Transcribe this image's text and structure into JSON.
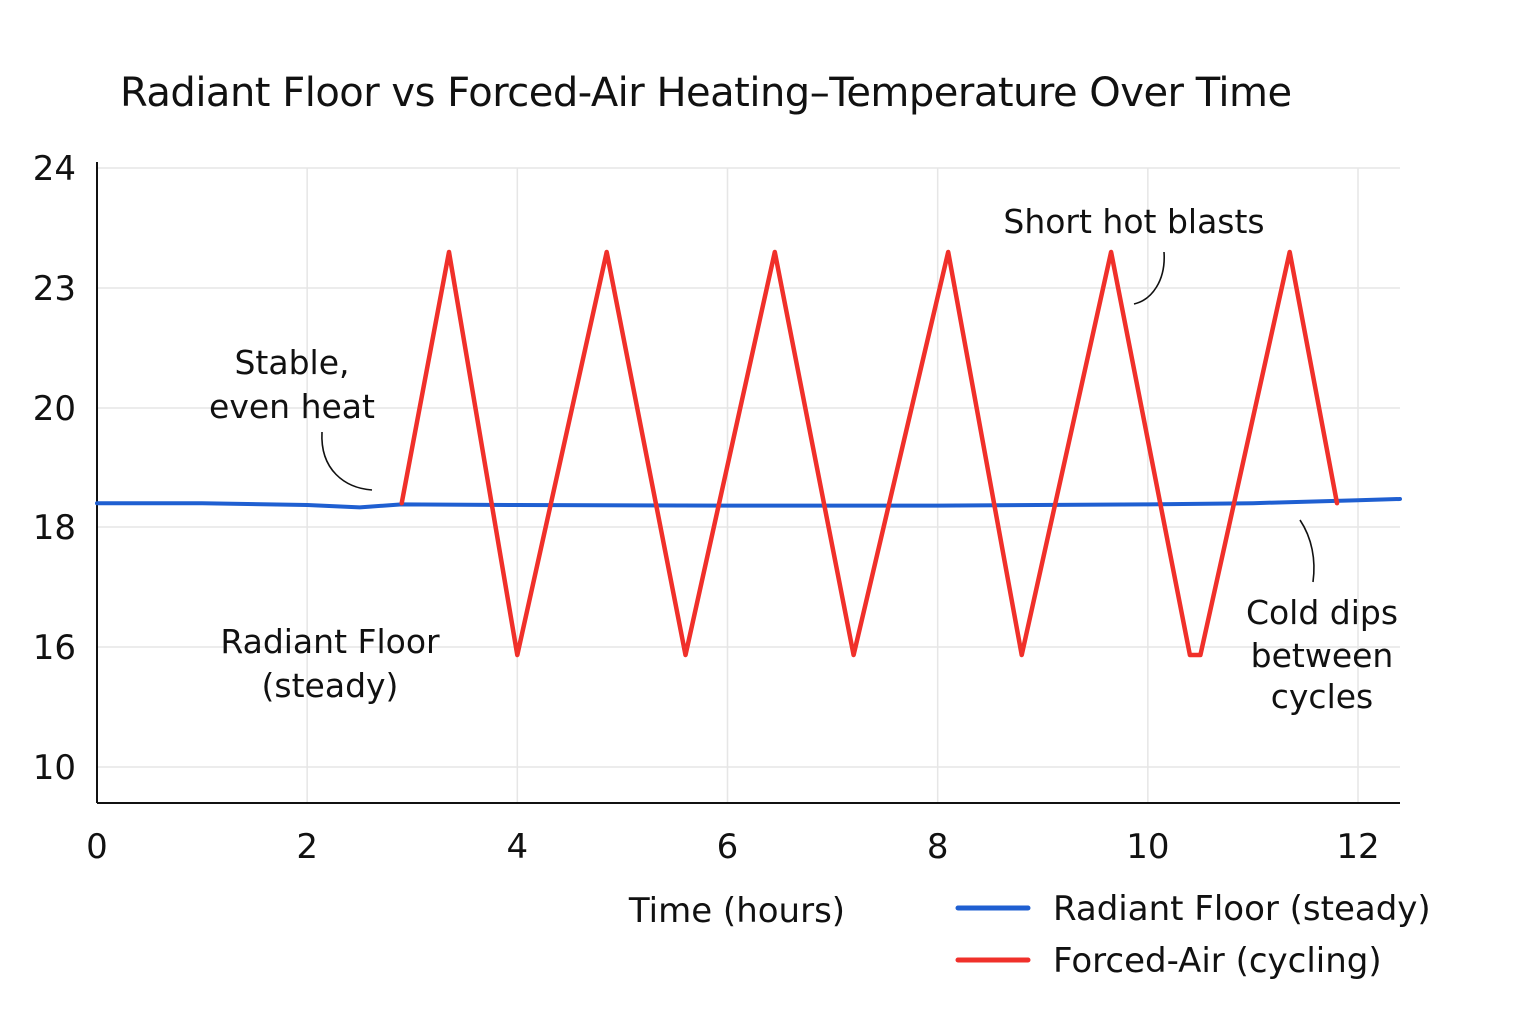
{
  "chart_data": {
    "type": "line",
    "title": "Radiant Floor vs Forced-Air Heating–Temperature Over Time",
    "xlabel": "Time (hours)",
    "ylabel": "",
    "x_ticks": [
      0,
      2,
      4,
      6,
      8,
      10,
      12
    ],
    "y_tick_labels": [
      "10",
      "16",
      "18",
      "20",
      "23",
      "24"
    ],
    "grid": true,
    "legend_position": "bottom-right",
    "series": [
      {
        "name": "Radiant Floor (steady)",
        "color": "#1f5fd1",
        "x": [
          0,
          1,
          2,
          2.5,
          2.9,
          4,
          6,
          8,
          10,
          11,
          12,
          12.4
        ],
        "y": [
          18.4,
          18.4,
          18.37,
          18.33,
          18.38,
          18.37,
          18.36,
          18.36,
          18.38,
          18.4,
          18.45,
          18.47
        ]
      },
      {
        "name": "Forced-Air (cycling)",
        "color": "#f0302a",
        "x": [
          2.9,
          3.35,
          4.0,
          4.85,
          5.6,
          6.45,
          7.2,
          8.1,
          8.8,
          9.65,
          10.4,
          10.5,
          11.35,
          11.8
        ],
        "y": [
          18.4,
          23.3,
          15.6,
          23.3,
          15.6,
          23.3,
          15.6,
          23.3,
          15.6,
          23.3,
          15.6,
          15.6,
          23.3,
          18.4
        ]
      }
    ],
    "annotations": [
      {
        "lines": [
          "Stable,",
          "even heat"
        ]
      },
      {
        "lines": [
          "Short hot blasts"
        ]
      },
      {
        "lines": [
          "Radiant Floor",
          "(steady)"
        ]
      },
      {
        "lines": [
          "Cold dips",
          "between",
          "cycles"
        ]
      }
    ]
  }
}
